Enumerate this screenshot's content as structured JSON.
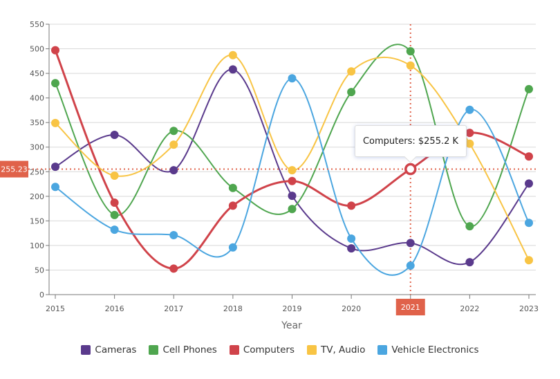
{
  "chart_data": {
    "type": "line",
    "title": "",
    "xlabel": "Year",
    "ylabel": "",
    "x": [
      2015,
      2016,
      2017,
      2018,
      2019,
      2020,
      2021,
      2022,
      2023
    ],
    "ylim": [
      0,
      550
    ],
    "yticks": [
      0,
      50,
      100,
      150,
      200,
      250,
      300,
      350,
      400,
      450,
      500,
      550
    ],
    "grid": true,
    "legend_position": "bottom",
    "series": [
      {
        "name": "Cameras",
        "color": "#5a3a8c",
        "values": [
          260,
          325,
          253,
          458,
          201,
          94,
          105,
          66,
          226
        ]
      },
      {
        "name": "Cell Phones",
        "color": "#4fa64f",
        "values": [
          430,
          162,
          333,
          217,
          174,
          412,
          495,
          139,
          418
        ]
      },
      {
        "name": "Computers",
        "color": "#d0434a",
        "values": [
          497,
          187,
          53,
          181,
          231,
          181,
          255.23,
          329,
          281
        ]
      },
      {
        "name": "TV, Audio",
        "color": "#f8c444",
        "values": [
          349,
          242,
          305,
          487,
          253,
          454,
          466,
          307,
          70
        ]
      },
      {
        "name": "Vehicle Electronics",
        "color": "#4ba6e0",
        "values": [
          219,
          132,
          121,
          96,
          440,
          114,
          59,
          376,
          146
        ]
      }
    ],
    "crosshair": {
      "x_label": "2021",
      "y_label": "255.23",
      "color": "#e0624a"
    },
    "tooltip": "Computers: $255.2 K"
  }
}
